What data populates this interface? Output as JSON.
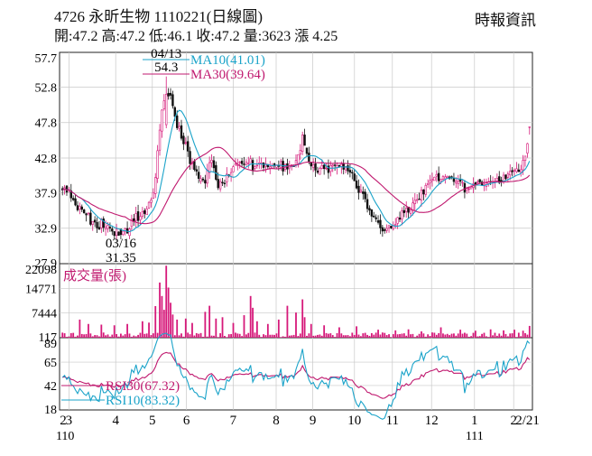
{
  "header": {
    "title": "4726 永昕生物 1110221(日線圖)",
    "source": "時報資訊",
    "ohlc": "開:47.2 高:47.2 低:46.1 收:47.2 量:3623 漲 4.25"
  },
  "colors": {
    "up": "#d6197a",
    "down": "#111111",
    "ma10": "#1aa3c9",
    "ma30": "#c0196f",
    "rsi30": "#c0196f",
    "rsi10": "#1aa3c9",
    "volume": "#d6197a",
    "grid": "#c8c8c8"
  },
  "chart_data": [
    {
      "type": "candlestick",
      "name": "price",
      "ylim": [
        27.9,
        57.7
      ],
      "yticks": [
        27.9,
        32.9,
        37.9,
        42.8,
        47.8,
        52.8,
        57.7
      ],
      "legend": [
        "MA10(41.01)",
        "MA30(39.64)"
      ],
      "annotations": [
        {
          "label_top": "04/13",
          "label_bottom": "54.3",
          "day": 48,
          "value": 54.3
        },
        {
          "label_top": "03/16",
          "label_bottom": "31.35",
          "day": 27,
          "value": 31.35
        }
      ],
      "start": 38.5,
      "high_value": 54.3,
      "high_day": 48,
      "low_value": 31.35,
      "low_day": 27,
      "last_close": 47.2,
      "last_high": 47.2,
      "last_low": 46.1,
      "anchors": [
        [
          0,
          38.5
        ],
        [
          3,
          37.8
        ],
        [
          7,
          35.8
        ],
        [
          12,
          34.2
        ],
        [
          18,
          33.2
        ],
        [
          22,
          32.4
        ],
        [
          27,
          31.6
        ],
        [
          32,
          33.8
        ],
        [
          38,
          35.2
        ],
        [
          42,
          37.5
        ],
        [
          45,
          46.5
        ],
        [
          48,
          53.5
        ],
        [
          51,
          50.5
        ],
        [
          54,
          46.8
        ],
        [
          58,
          43.5
        ],
        [
          62,
          40.5
        ],
        [
          66,
          39.8
        ],
        [
          69,
          42.5
        ],
        [
          72,
          38.5
        ],
        [
          76,
          40.2
        ],
        [
          80,
          41.8
        ],
        [
          85,
          42.5
        ],
        [
          89,
          41.8
        ],
        [
          93,
          41.6
        ],
        [
          97,
          42.0
        ],
        [
          101,
          41.8
        ],
        [
          104,
          41.7
        ],
        [
          108,
          42.0
        ],
        [
          111,
          45.5
        ],
        [
          114,
          42.2
        ],
        [
          118,
          41.0
        ],
        [
          123,
          41.4
        ],
        [
          127,
          42.0
        ],
        [
          131,
          41.3
        ],
        [
          135,
          39.8
        ],
        [
          139,
          37.5
        ],
        [
          143,
          35.0
        ],
        [
          147,
          33.0
        ],
        [
          150,
          32.2
        ],
        [
          154,
          33.6
        ],
        [
          158,
          35.2
        ],
        [
          162,
          36.5
        ],
        [
          166,
          37.8
        ],
        [
          169,
          39.8
        ],
        [
          173,
          39.6
        ],
        [
          177,
          40.2
        ],
        [
          181,
          40.0
        ],
        [
          186,
          38.6
        ],
        [
          190,
          39.0
        ],
        [
          195,
          39.2
        ],
        [
          200,
          39.4
        ],
        [
          205,
          40.0
        ],
        [
          209,
          40.6
        ],
        [
          212,
          41.4
        ],
        [
          214,
          42.8
        ],
        [
          216,
          47.2
        ]
      ]
    },
    {
      "type": "bar",
      "name": "volume",
      "ylabel": "成交量(張)",
      "ylim": [
        117,
        22098
      ],
      "yticks": [
        117,
        7444,
        14771,
        22098
      ],
      "spikes": [
        [
          8,
          5500
        ],
        [
          12,
          4200
        ],
        [
          18,
          4000
        ],
        [
          24,
          3800
        ],
        [
          30,
          4200
        ],
        [
          37,
          5000
        ],
        [
          40,
          4600
        ],
        [
          43,
          9500
        ],
        [
          45,
          16500
        ],
        [
          46,
          12500
        ],
        [
          47,
          8400
        ],
        [
          48,
          21500
        ],
        [
          49,
          15000
        ],
        [
          50,
          10500
        ],
        [
          51,
          7000
        ],
        [
          53,
          5500
        ],
        [
          57,
          5800
        ],
        [
          60,
          4500
        ],
        [
          66,
          7800
        ],
        [
          68,
          9600
        ],
        [
          71,
          5800
        ],
        [
          74,
          6200
        ],
        [
          79,
          4500
        ],
        [
          84,
          6800
        ],
        [
          87,
          12500
        ],
        [
          88,
          9000
        ],
        [
          90,
          5000
        ],
        [
          95,
          4200
        ],
        [
          100,
          5500
        ],
        [
          104,
          9600
        ],
        [
          108,
          7600
        ],
        [
          111,
          11500
        ],
        [
          112,
          6200
        ],
        [
          115,
          4200
        ],
        [
          121,
          3800
        ],
        [
          128,
          3200
        ],
        [
          136,
          3500
        ],
        [
          146,
          2500
        ],
        [
          154,
          2300
        ],
        [
          160,
          2600
        ],
        [
          166,
          2000
        ],
        [
          175,
          3200
        ],
        [
          184,
          2500
        ],
        [
          191,
          2200
        ],
        [
          198,
          2600
        ],
        [
          204,
          2300
        ],
        [
          209,
          2500
        ],
        [
          213,
          2200
        ],
        [
          216,
          3623
        ]
      ]
    },
    {
      "type": "line",
      "name": "rsi",
      "ylim": [
        18,
        89
      ],
      "yticks": [
        18,
        42,
        65,
        89
      ],
      "legend": [
        "RSI30(67.32)",
        "RSI10(83.32)"
      ],
      "series": [
        {
          "name": "RSI30(67.32)",
          "last": 67.32
        },
        {
          "name": "RSI10(83.32)",
          "last": 83.32
        }
      ]
    }
  ],
  "xaxis": {
    "labels": [
      {
        "text": "2",
        "day": 0
      },
      {
        "text": "3",
        "day": 6
      },
      {
        "text": "4",
        "day": 43
      },
      {
        "text": "5",
        "day": 72
      },
      {
        "text": "6",
        "day": 99
      },
      {
        "text": "7",
        "day": 136
      },
      {
        "text": "8",
        "day": 170
      },
      {
        "text": "9",
        "day": 199
      },
      {
        "text": "10",
        "day": 232
      },
      {
        "text": "11",
        "day": 262
      },
      {
        "text": "12",
        "day": 293
      },
      {
        "text": "1",
        "day": 327
      },
      {
        "text": "2",
        "day": 358
      },
      {
        "text": "2/21",
        "day": 369
      }
    ],
    "sub_labels": [
      {
        "text": "110",
        "day": 3
      },
      {
        "text": "111",
        "day": 327
      }
    ]
  }
}
